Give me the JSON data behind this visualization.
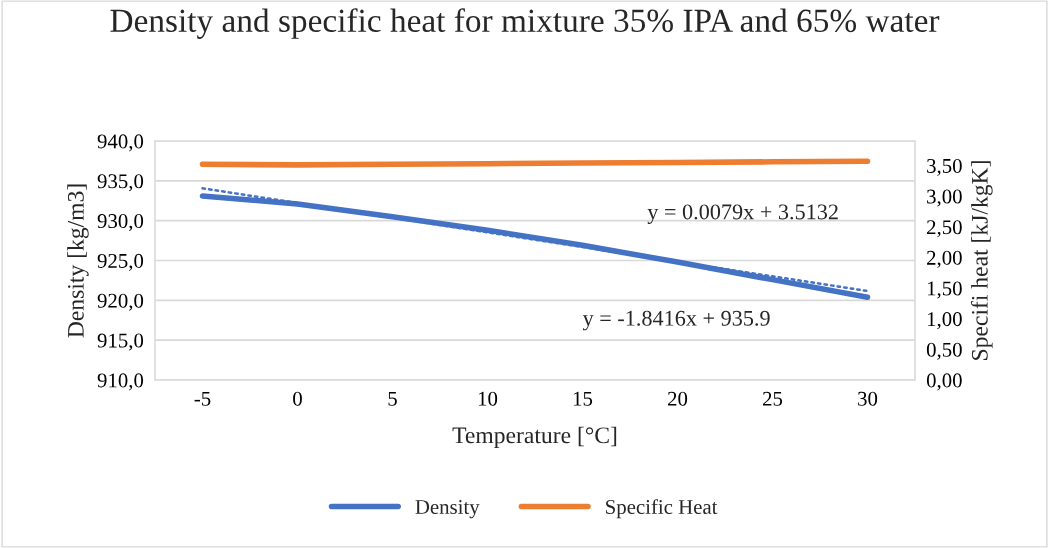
{
  "chart_data": {
    "type": "line",
    "title": "Density and specific heat for mixture 35% IPA and 65% water",
    "xlabel": "Temperature [°C]",
    "ylabel": "Density [kg/m3]",
    "y2label": "Specifi heat [kJ/kgK]",
    "categories": [
      "-5",
      "0",
      "5",
      "10",
      "15",
      "20",
      "25",
      "30"
    ],
    "series": [
      {
        "name": "Density",
        "color": "#4472c4",
        "values": [
          933.1,
          932.1,
          930.5,
          928.8,
          926.9,
          924.8,
          922.6,
          920.4
        ]
      },
      {
        "name": "Specific Heat",
        "color": "#ed7d31",
        "axis": "y2",
        "values": [
          3.52,
          3.51,
          3.52,
          3.53,
          3.54,
          3.55,
          3.56,
          3.57
        ]
      },
      {
        "color": "#4472c4",
        "line_style": "dotted",
        "values": [
          934.06,
          932.22,
          930.37,
          928.53,
          926.69,
          924.85,
          923.01,
          921.17
        ]
      }
    ],
    "ylim": [
      910,
      940
    ],
    "yticks": [
      {
        "value": 910,
        "label": "910,0"
      },
      {
        "value": 915,
        "label": "915,0"
      },
      {
        "value": 920,
        "label": "920,0"
      },
      {
        "value": 925,
        "label": "925,0"
      },
      {
        "value": 930,
        "label": "930,0"
      },
      {
        "value": 935,
        "label": "935,0"
      },
      {
        "value": 940,
        "label": "940,0"
      }
    ],
    "y2lim": [
      0,
      3.9
    ],
    "y2ticks": [
      {
        "value": 0,
        "label": "0,00"
      },
      {
        "value": 0.5,
        "label": "0,50"
      },
      {
        "value": 1,
        "label": "1,00"
      },
      {
        "value": 1.5,
        "label": "1,50"
      },
      {
        "value": 2,
        "label": "2,00"
      },
      {
        "value": 2.5,
        "label": "2,50"
      },
      {
        "value": 3,
        "label": "3,00"
      },
      {
        "value": 3.5,
        "label": "3,50"
      }
    ],
    "annotations": [
      "y = 0.0079x + 3.5132",
      "y = -1.8416x + 935.9"
    ],
    "grid": "y",
    "legend": "bottom",
    "marker": "none",
    "line_style": "solid"
  }
}
